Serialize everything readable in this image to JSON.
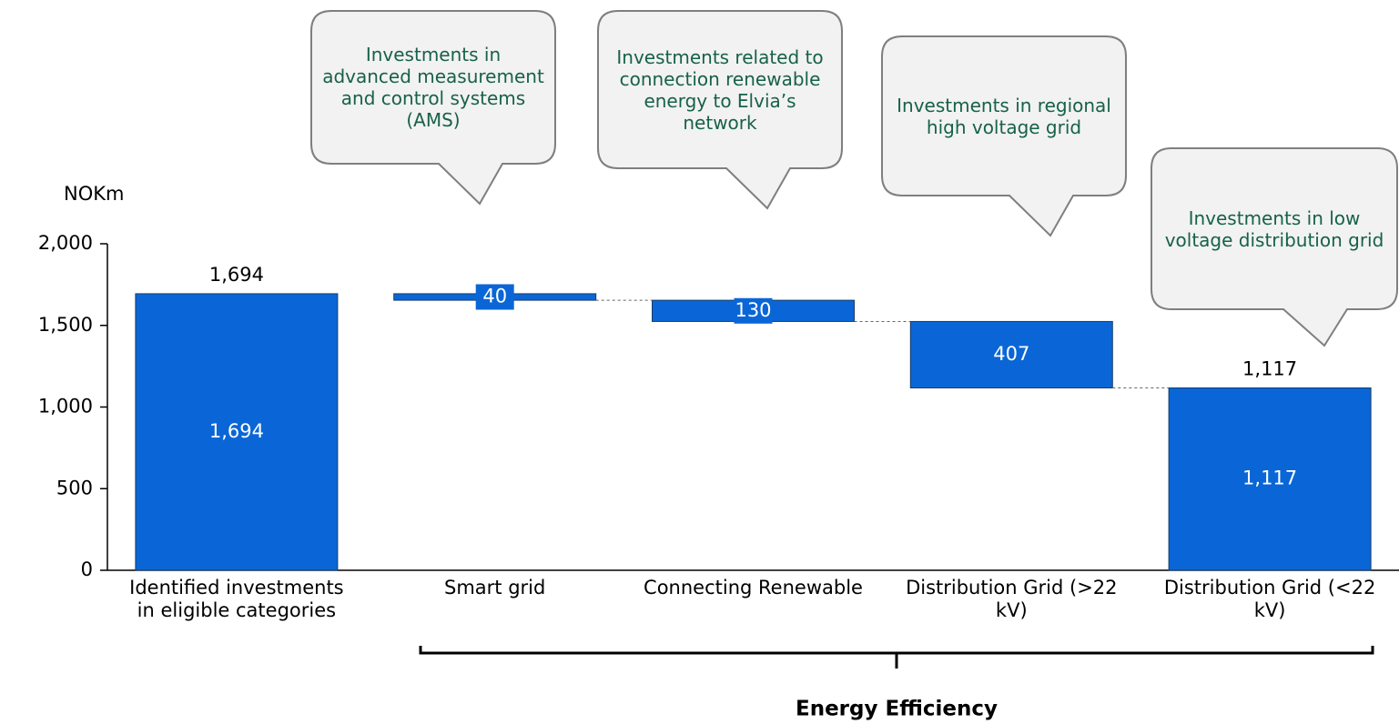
{
  "chart_data": {
    "type": "waterfall",
    "y_label": "NOKm",
    "categories": [
      "Identified investments in eligible categories",
      "Smart grid",
      "Connecting Renewable",
      "Distribution Grid (>22 kV)",
      "Distribution Grid (<22 kV)"
    ],
    "values": [
      1694,
      40,
      130,
      407,
      1117
    ],
    "value_labels": [
      "1,694",
      "40",
      "130",
      "407",
      "1,117"
    ],
    "measure": [
      "total",
      "decrease",
      "decrease",
      "decrease",
      "total"
    ],
    "color": "#0a66d6",
    "ylim": [
      0,
      2000
    ],
    "yticks": [
      0,
      500,
      {
        "value": 1000,
        "label": "1,000"
      },
      {
        "value": 1500,
        "label": "1,500"
      },
      {
        "value": 2000,
        "label": "2,000"
      }
    ],
    "annotations": [
      {
        "category": 1,
        "text": "Investments in advanced measurement and control systems (AMS)"
      },
      {
        "category": 2,
        "text": "Investments related to connection renewable energy to Elvia’s network"
      },
      {
        "category": 3,
        "text": "Investments in regional high voltage grid"
      },
      {
        "category": 4,
        "text": "Investments in low voltage distribution grid"
      }
    ],
    "group_label": "Energy Efficiency"
  }
}
